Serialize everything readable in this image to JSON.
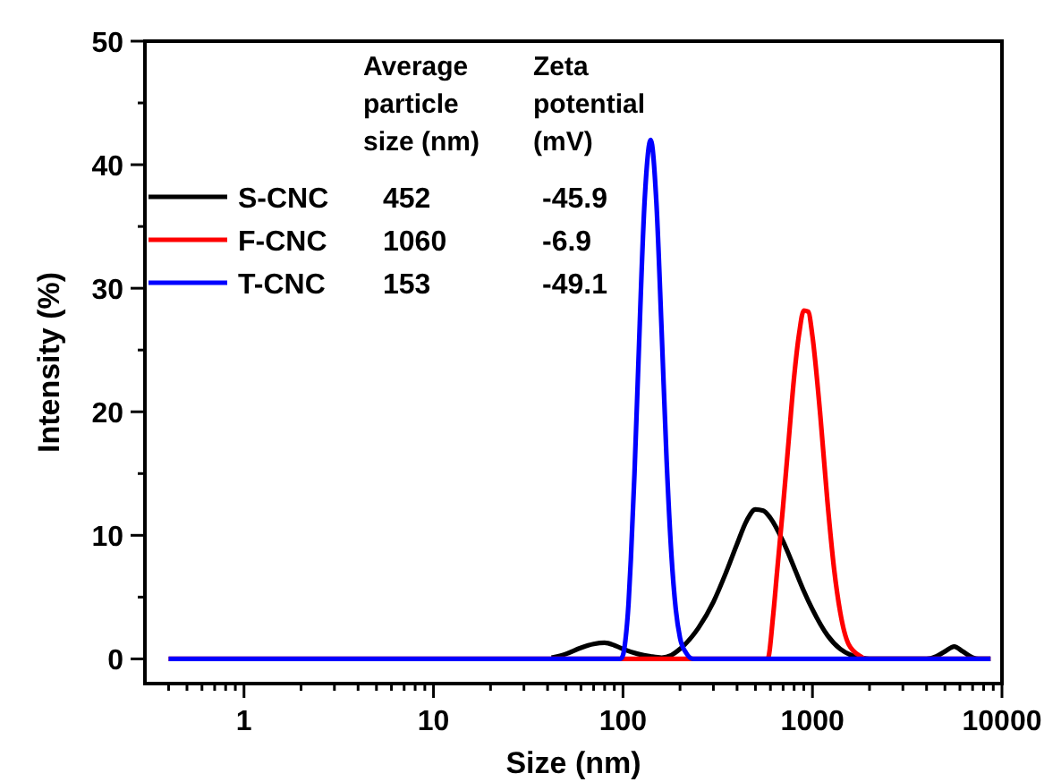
{
  "chart_data": {
    "type": "line",
    "xlabel": "Size (nm)",
    "ylabel": "Intensity (%)",
    "log": "x",
    "grid": false,
    "legend": "top left",
    "line_style": "solid",
    "xlim": [
      0.3,
      10000
    ],
    "ylim": [
      -2,
      50
    ],
    "xticks": [
      {
        "value": 0.4,
        "label": null
      },
      {
        "value": 0.5,
        "label": null
      },
      {
        "value": 0.6,
        "label": null
      },
      {
        "value": 0.7,
        "label": null
      },
      {
        "value": 0.8,
        "label": null
      },
      {
        "value": 0.9,
        "label": null
      },
      1,
      {
        "value": 2,
        "label": null
      },
      {
        "value": 3,
        "label": null
      },
      {
        "value": 4,
        "label": null
      },
      {
        "value": 5,
        "label": null
      },
      {
        "value": 6,
        "label": null
      },
      {
        "value": 7,
        "label": null
      },
      {
        "value": 8,
        "label": null
      },
      {
        "value": 9,
        "label": null
      },
      10,
      {
        "value": 20,
        "label": null
      },
      {
        "value": 30,
        "label": null
      },
      {
        "value": 40,
        "label": null
      },
      {
        "value": 50,
        "label": null
      },
      {
        "value": 60,
        "label": null
      },
      {
        "value": 70,
        "label": null
      },
      {
        "value": 80,
        "label": null
      },
      {
        "value": 90,
        "label": null
      },
      100,
      {
        "value": 200,
        "label": null
      },
      {
        "value": 300,
        "label": null
      },
      {
        "value": 400,
        "label": null
      },
      {
        "value": 500,
        "label": null
      },
      {
        "value": 600,
        "label": null
      },
      {
        "value": 700,
        "label": null
      },
      {
        "value": 800,
        "label": null
      },
      {
        "value": 900,
        "label": null
      },
      1000,
      {
        "value": 2000,
        "label": null
      },
      {
        "value": 3000,
        "label": null
      },
      {
        "value": 4000,
        "label": null
      },
      {
        "value": 5000,
        "label": null
      },
      {
        "value": 6000,
        "label": null
      },
      {
        "value": 7000,
        "label": null
      },
      {
        "value": 8000,
        "label": null
      },
      {
        "value": 9000,
        "label": null
      },
      10000
    ],
    "yticks": [
      0,
      {
        "value": 5,
        "label": null
      },
      10,
      {
        "value": 15,
        "label": null
      },
      20,
      {
        "value": 25,
        "label": null
      },
      30,
      {
        "value": 35,
        "label": null
      },
      40,
      {
        "value": 45,
        "label": null
      },
      50
    ],
    "annotations": [
      "Average particle size (nm)",
      "Zeta potential (mV)",
      "452",
      "-45.9",
      "1060",
      "-6.9",
      "153",
      "-49.1"
    ],
    "series": [
      {
        "name": "S-CNC",
        "color": "#000000",
        "x": [
          42,
          50,
          60,
          70,
          80,
          90,
          100,
          120,
          140,
          160,
          180,
          200,
          250,
          300,
          350,
          400,
          450,
          500,
          550,
          600,
          700,
          800,
          900,
          1000,
          1200,
          1400,
          1600,
          1800,
          2000,
          4000,
          4500,
          5000,
          5600,
          6200,
          7000,
          7500,
          8700
        ],
        "values": [
          0.1,
          0.4,
          0.9,
          1.2,
          1.3,
          1.1,
          0.8,
          0.4,
          0.2,
          0.1,
          0.3,
          0.8,
          2.5,
          4.6,
          7,
          9.3,
          11.2,
          12.1,
          12,
          11.4,
          9.5,
          7.4,
          5.5,
          4,
          1.9,
          0.8,
          0.3,
          0.1,
          0,
          0,
          0.2,
          0.6,
          1,
          0.6,
          0.1,
          0,
          0
        ]
      },
      {
        "name": "F-CNC",
        "color": "#ff0000",
        "x": [
          0.4,
          580,
          620,
          650,
          700,
          750,
          800,
          850,
          900,
          950,
          1000,
          1100,
          1200,
          1300,
          1400,
          1550,
          1800,
          1900,
          8700
        ],
        "values": [
          0,
          0,
          3.5,
          7,
          12.4,
          17.8,
          22.8,
          26.3,
          28.2,
          28.1,
          26.1,
          19.7,
          12.7,
          7.3,
          3.8,
          1.2,
          0.2,
          0,
          0
        ]
      },
      {
        "name": "T-CNC",
        "color": "#0000ff",
        "x": [
          0.4,
          97,
          100,
          103,
          107,
          110,
          115,
          120,
          130,
          140,
          150,
          160,
          170,
          180,
          190,
          200,
          215,
          235,
          8700
        ],
        "values": [
          0,
          0,
          0.3,
          1.5,
          4.5,
          8,
          15,
          23,
          37,
          42,
          37,
          26.5,
          16,
          8.5,
          4,
          1.7,
          0.5,
          0,
          0
        ]
      }
    ]
  }
}
